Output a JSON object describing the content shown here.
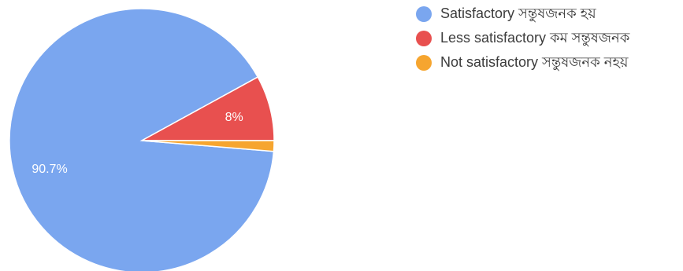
{
  "chart_data": {
    "type": "pie",
    "categories": [
      "Satisfactory সন্তুষজনক হয়",
      "Less satisfactory কম সন্তুষজনক",
      "Not satisfactory সন্তুষজনক নহয়"
    ],
    "values": [
      90.7,
      8,
      1.3
    ],
    "data_labels": [
      "90.7%",
      "8%",
      ""
    ],
    "colors": [
      "#7aa6ef",
      "#e8504f",
      "#f6a52f"
    ],
    "legend_position": "right"
  }
}
